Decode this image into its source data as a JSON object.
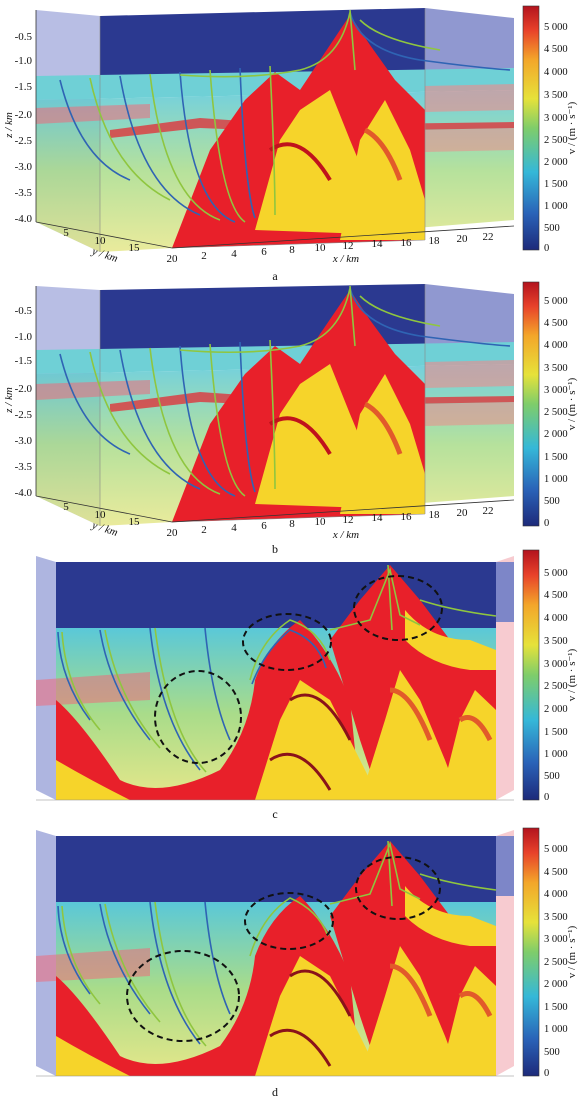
{
  "chart_data": [
    {
      "type": "other",
      "panel_label": "a",
      "view": "3d",
      "zlabel": "z / km",
      "ylabel": "y / km",
      "xlabel": "x / km",
      "z_ticks": [
        "-0.5",
        "-1.0",
        "-1.5",
        "-2.0",
        "-2.5",
        "-3.0",
        "-3.5",
        "-4.0"
      ],
      "y_ticks": [
        "5",
        "10",
        "15",
        "20"
      ],
      "x_ticks": [
        "2",
        "4",
        "6",
        "8",
        "10",
        "12",
        "14",
        "16",
        "18",
        "20",
        "22"
      ],
      "colorbar": {
        "label": "v / (m · s⁻¹)",
        "ticks": [
          "5 000",
          "4 500",
          "4 000",
          "3 500",
          "3 000",
          "2 500",
          "2 000",
          "1 500",
          "1 000",
          "500",
          "0"
        ],
        "range": [
          0,
          5000
        ]
      }
    },
    {
      "type": "other",
      "panel_label": "b",
      "view": "3d",
      "zlabel": "z / km",
      "ylabel": "y / km",
      "xlabel": "x / km",
      "z_ticks": [
        "-0.5",
        "-1.0",
        "-1.5",
        "-2.0",
        "-2.5",
        "-3.0",
        "-3.5",
        "-4.0"
      ],
      "y_ticks": [
        "5",
        "10",
        "15",
        "20"
      ],
      "x_ticks": [
        "2",
        "4",
        "6",
        "8",
        "10",
        "12",
        "14",
        "16",
        "18",
        "20",
        "22"
      ],
      "colorbar": {
        "label": "v / (m · s⁻¹)",
        "ticks": [
          "5 000",
          "4 500",
          "4 000",
          "3 500",
          "3 000",
          "2 500",
          "2 000",
          "1 500",
          "1 000",
          "500",
          "0"
        ],
        "range": [
          0,
          5000
        ]
      }
    },
    {
      "type": "other",
      "panel_label": "c",
      "view": "side",
      "colorbar": {
        "label": "v / (m · s⁻¹)",
        "ticks": [
          "5 000",
          "4 500",
          "4 000",
          "3 500",
          "3 000",
          "2 500",
          "2 000",
          "1 500",
          "1 000",
          "500",
          "0"
        ],
        "range": [
          0,
          5000
        ]
      }
    },
    {
      "type": "other",
      "panel_label": "d",
      "view": "side",
      "colorbar": {
        "label": "v / (m · s⁻¹)",
        "ticks": [
          "5 000",
          "4 500",
          "4 000",
          "3 500",
          "3 000",
          "2 500",
          "2 000",
          "1 500",
          "1 000",
          "500",
          "0"
        ],
        "range": [
          0,
          5000
        ]
      }
    }
  ],
  "colors": {
    "sky": "#2b3990",
    "layer_red": "#e8202a",
    "layer_yellow": "#f6d42a",
    "layer_cyan": "#6fd0d6",
    "ray_blue": "#2f64b4",
    "ray_green": "#8fc63f"
  }
}
